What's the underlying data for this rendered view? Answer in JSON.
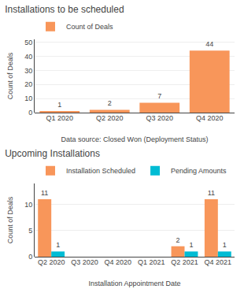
{
  "chart_data": [
    {
      "type": "bar",
      "title": "Installations to be scheduled",
      "categories": [
        "Q1 2020",
        "Q2 2020",
        "Q3 2020",
        "Q4 2020"
      ],
      "series": [
        {
          "name": "Count of Deals",
          "color": "#f8965a",
          "values": [
            1,
            2,
            7,
            44
          ]
        }
      ],
      "xlabel": "Data source: Closed Won (Deployment Status)",
      "ylabel": "Count of Deals",
      "ylim": [
        0,
        52
      ],
      "yticks": [
        0,
        10,
        20,
        30,
        40,
        50
      ],
      "grid": true,
      "data_labels": true,
      "legend": "top left"
    },
    {
      "type": "bar",
      "title": "Upcoming Installations",
      "categories": [
        "Q2 2020",
        "Q3 2020",
        "Q4 2020",
        "Q1 2021",
        "Q2 2021",
        "Q4 2021"
      ],
      "series": [
        {
          "name": "Installation Scheduled",
          "color": "#f8965a",
          "values": [
            11,
            0,
            0,
            0,
            2,
            11
          ],
          "value_labels": [
            "11",
            null,
            null,
            null,
            "2",
            "11"
          ]
        },
        {
          "name": "Pending Amounts",
          "color": "#00bcd4",
          "values": [
            1,
            0,
            0,
            0,
            1,
            1
          ],
          "value_labels": [
            "1",
            null,
            null,
            null,
            "1",
            "1"
          ]
        }
      ],
      "xlabel": "Installation Appointment Date",
      "ylabel": "Count of Deals",
      "ylim": [
        0,
        14
      ],
      "yticks": [
        0,
        5,
        10
      ],
      "grid": true,
      "data_labels": true,
      "legend": "top left"
    }
  ]
}
